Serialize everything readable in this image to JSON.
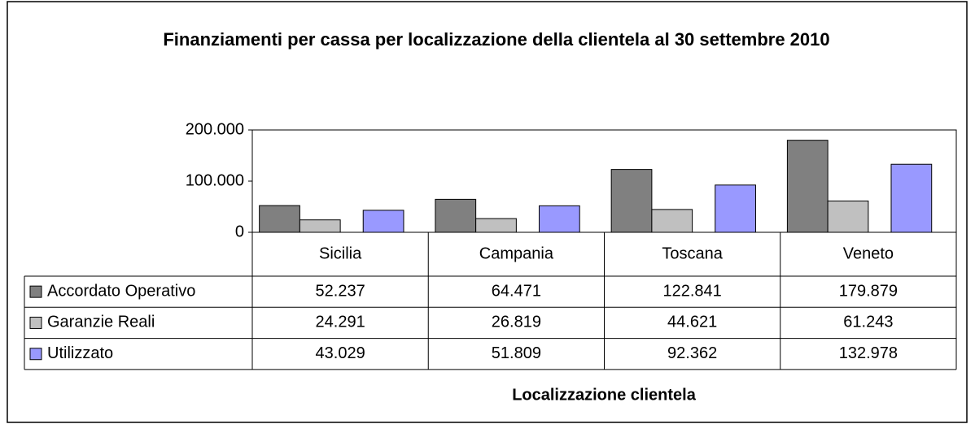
{
  "chart_data": {
    "type": "bar",
    "title": "Finanziamenti per cassa per localizzazione della clientela al 30 settembre 2010",
    "x_label": "Localizzazione clientela",
    "categories": [
      "Sicilia",
      "Campania",
      "Toscana",
      "Veneto"
    ],
    "series": [
      {
        "name": "Accordato Operativo",
        "color": "#808080",
        "values": [
          52237,
          64471,
          122841,
          179879
        ],
        "value_labels": [
          "52.237",
          "64.471",
          "122.841",
          "179.879"
        ]
      },
      {
        "name": "Garanzie Reali",
        "color": "#c0c0c0",
        "values": [
          24291,
          26819,
          44621,
          61243
        ],
        "value_labels": [
          "24.291",
          "26.819",
          "44.621",
          "61.243"
        ]
      },
      {
        "name": "Utilizzato",
        "color": "#9999ff",
        "values": [
          43029,
          51809,
          92362,
          132978
        ],
        "value_labels": [
          "43.029",
          "51.809",
          "92.362",
          "132.978"
        ]
      }
    ],
    "ylim": [
      0,
      200000
    ],
    "yticks": [
      0,
      {
        "value": 100000,
        "label": "100.000"
      },
      {
        "value": 200000,
        "label": "200.000"
      }
    ],
    "grid": false
  }
}
